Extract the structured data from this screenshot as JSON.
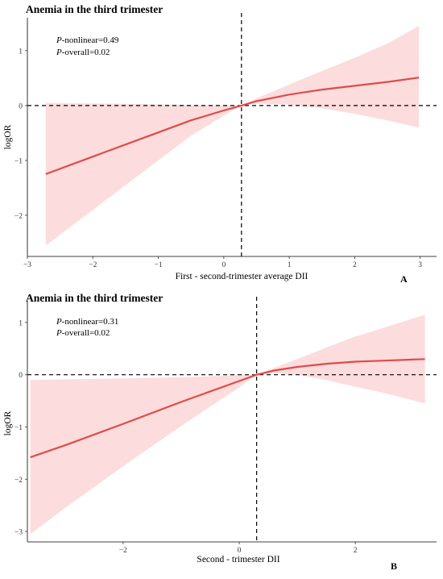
{
  "colors": {
    "line": "#e04b4b",
    "band": "#fcdcdc",
    "axis": "#000000"
  },
  "chart_data": [
    {
      "type": "line",
      "panel_label": "A",
      "title": "Anemia in the third trimester",
      "xlabel": "First - second-trimester average DII",
      "ylabel": "logOR",
      "xlim": [
        -3,
        3.25
      ],
      "ylim": [
        -2.75,
        1.6
      ],
      "x_ticks": [
        -3,
        -2,
        -1,
        0,
        1,
        2,
        3
      ],
      "y_ticks": [
        -2,
        -1,
        0,
        1
      ],
      "reference_x": 0.27,
      "reference_y": 0,
      "annotations": [
        {
          "label": "P",
          "text": "-nonlinear=0.49"
        },
        {
          "label": "P",
          "text": "-overall=0.02"
        }
      ],
      "series": [
        {
          "x": [
            -2.72,
            -2.0,
            -1.5,
            -1.0,
            -0.5,
            0.0,
            0.27,
            0.5,
            1.0,
            1.5,
            2.0,
            2.5,
            2.98
          ],
          "y": [
            -1.25,
            -0.93,
            -0.71,
            -0.49,
            -0.27,
            -0.09,
            0.0,
            0.08,
            0.2,
            0.29,
            0.36,
            0.43,
            0.51
          ],
          "lower": [
            -2.55,
            -1.9,
            -1.45,
            -1.0,
            -0.55,
            -0.18,
            0.0,
            0.03,
            0.02,
            -0.05,
            -0.15,
            -0.27,
            -0.4
          ],
          "upper": [
            0.05,
            0.04,
            0.03,
            0.02,
            0.01,
            0.0,
            0.0,
            0.13,
            0.38,
            0.63,
            0.87,
            1.13,
            1.45
          ]
        }
      ]
    },
    {
      "type": "line",
      "panel_label": "B",
      "title": "Anemia in the third trimester",
      "xlabel": "Second - trimester DII",
      "ylabel": "logOR",
      "xlim": [
        -3.65,
        3.4
      ],
      "ylim": [
        -3.2,
        1.4
      ],
      "x_ticks": [
        -2,
        0,
        2
      ],
      "y_ticks": [
        -3,
        -2,
        -1,
        0,
        1
      ],
      "reference_x": 0.3,
      "reference_y": 0,
      "annotations": [
        {
          "label": "P",
          "text": "-nonlinear=0.31"
        },
        {
          "label": "P",
          "text": "-overall=0.02"
        }
      ],
      "series": [
        {
          "x": [
            -3.6,
            -3.0,
            -2.0,
            -1.0,
            0.0,
            0.3,
            0.6,
            1.0,
            1.5,
            2.0,
            2.5,
            3.2
          ],
          "y": [
            -1.58,
            -1.35,
            -0.94,
            -0.52,
            -0.12,
            0.0,
            0.08,
            0.15,
            0.21,
            0.25,
            0.27,
            0.3
          ],
          "lower": [
            -3.05,
            -2.55,
            -1.75,
            -0.98,
            -0.24,
            0.0,
            0.03,
            0.0,
            -0.1,
            -0.23,
            -0.35,
            -0.55
          ],
          "upper": [
            -0.1,
            -0.09,
            -0.07,
            -0.05,
            -0.01,
            0.0,
            0.13,
            0.3,
            0.52,
            0.73,
            0.9,
            1.15
          ]
        }
      ]
    }
  ]
}
